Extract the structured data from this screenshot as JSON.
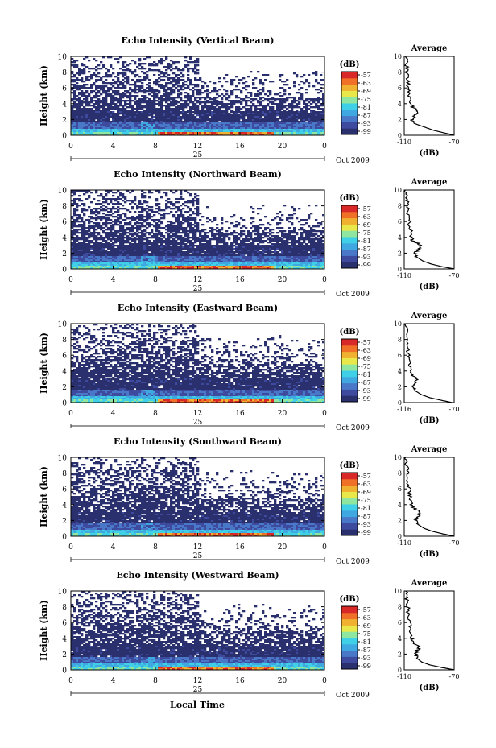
{
  "figure": {
    "xlabel_bottom": "Local Time",
    "date_label": "Oct 2009",
    "day_label": "25",
    "colorbar_unit": "(dB)",
    "colorbar_ticks": [
      "-57",
      "-63",
      "-69",
      "-75",
      "-81",
      "-87",
      "-93",
      "-99"
    ],
    "average_title": "Average",
    "average_unit": "(dB)",
    "ylabel": "Height (km)",
    "colormap": [
      "#2a2f6e",
      "#3e4a9e",
      "#4a78c8",
      "#3fa8e0",
      "#3fd0e8",
      "#8ee6a0",
      "#e8e84a",
      "#f0b030",
      "#f07028",
      "#d82828"
    ]
  },
  "chart_data": [
    {
      "type": "heatmap",
      "title": "Echo Intensity (Vertical Beam)",
      "x": [
        0,
        4,
        8,
        12,
        16,
        20,
        0
      ],
      "x_ticks": [
        "0",
        "4",
        "8",
        "12",
        "16",
        "20",
        "0"
      ],
      "y_ticks": [
        "0",
        "2",
        "4",
        "6",
        "8",
        "10"
      ],
      "ylim": [
        0,
        10
      ],
      "xlim": [
        0,
        24
      ],
      "zlim": [
        -99,
        -57
      ],
      "z_unit": "dB",
      "average_profile": {
        "xlim": [
          -110,
          -70
        ],
        "x_ticks": [
          "-110",
          "-70"
        ],
        "y_ticks": [
          "0",
          "2",
          "4",
          "6",
          "8",
          "10"
        ],
        "height": [
          0,
          0.3,
          0.6,
          1.0,
          1.5,
          2.0,
          2.5,
          3.0,
          3.5,
          4.0,
          5.0,
          6.0,
          7.0,
          8.0,
          9.0,
          10.0
        ],
        "db": [
          -70,
          -78,
          -86,
          -93,
          -102,
          -104,
          -101,
          -98,
          -103,
          -104,
          -106,
          -107,
          -107,
          -108,
          -108,
          -109
        ]
      }
    },
    {
      "type": "heatmap",
      "title": "Echo Intensity (Northward Beam)",
      "x": [
        0,
        4,
        8,
        12,
        16,
        20,
        0
      ],
      "x_ticks": [
        "0",
        "4",
        "8",
        "12",
        "16",
        "20",
        "0"
      ],
      "y_ticks": [
        "0",
        "2",
        "4",
        "6",
        "8",
        "10"
      ],
      "ylim": [
        0,
        10
      ],
      "xlim": [
        0,
        24
      ],
      "zlim": [
        -99,
        -57
      ],
      "z_unit": "dB",
      "average_profile": {
        "xlim": [
          -110,
          -70
        ],
        "x_ticks": [
          "-110",
          "-70"
        ],
        "y_ticks": [
          "0",
          "2",
          "4",
          "6",
          "8",
          "10"
        ],
        "height": [
          0,
          0.3,
          0.6,
          1.0,
          1.5,
          2.0,
          2.5,
          3.0,
          3.5,
          4.0,
          5.0,
          6.0,
          7.0,
          8.0,
          9.0,
          10.0
        ],
        "db": [
          -70,
          -80,
          -88,
          -95,
          -100,
          -102,
          -98,
          -96,
          -103,
          -104,
          -105,
          -106,
          -107,
          -107,
          -108,
          -109
        ]
      }
    },
    {
      "type": "heatmap",
      "title": "Echo Intensity (Eastward Beam)",
      "x": [
        0,
        4,
        8,
        12,
        16,
        20,
        0
      ],
      "x_ticks": [
        "0",
        "4",
        "8",
        "12",
        "16",
        "20",
        "0"
      ],
      "y_ticks": [
        "0",
        "2",
        "4",
        "6",
        "8",
        "10"
      ],
      "ylim": [
        0,
        10
      ],
      "xlim": [
        0,
        24
      ],
      "zlim": [
        -99,
        -57
      ],
      "z_unit": "dB",
      "average_profile": {
        "xlim": [
          -116,
          -70
        ],
        "x_ticks": [
          "-116",
          "-70"
        ],
        "y_ticks": [
          "0",
          "2",
          "4",
          "6",
          "8",
          "10"
        ],
        "height": [
          0,
          0.3,
          0.6,
          1.0,
          1.5,
          2.0,
          2.5,
          3.0,
          3.5,
          4.0,
          5.0,
          6.0,
          7.0,
          8.0,
          9.0,
          10.0
        ],
        "db": [
          -72,
          -82,
          -92,
          -100,
          -106,
          -108,
          -106,
          -104,
          -109,
          -110,
          -111,
          -112,
          -113,
          -113,
          -114,
          -115
        ]
      }
    },
    {
      "type": "heatmap",
      "title": "Echo Intensity (Southward Beam)",
      "x": [
        0,
        4,
        8,
        12,
        16,
        20,
        0
      ],
      "x_ticks": [
        "0",
        "4",
        "8",
        "12",
        "16",
        "20",
        "0"
      ],
      "y_ticks": [
        "0",
        "2",
        "4",
        "6",
        "8",
        "10"
      ],
      "ylim": [
        0,
        10
      ],
      "xlim": [
        0,
        24
      ],
      "zlim": [
        -99,
        -57
      ],
      "z_unit": "dB",
      "average_profile": {
        "xlim": [
          -110,
          -70
        ],
        "x_ticks": [
          "-110",
          "-70"
        ],
        "y_ticks": [
          "0",
          "2",
          "4",
          "6",
          "8",
          "10"
        ],
        "height": [
          0,
          0.3,
          0.6,
          1.0,
          1.5,
          2.0,
          2.5,
          3.0,
          3.5,
          4.0,
          5.0,
          6.0,
          7.0,
          8.0,
          9.0,
          10.0
        ],
        "db": [
          -70,
          -79,
          -87,
          -94,
          -99,
          -101,
          -98,
          -97,
          -102,
          -104,
          -105,
          -106,
          -107,
          -107,
          -108,
          -109
        ]
      }
    },
    {
      "type": "heatmap",
      "title": "Echo Intensity (Westward Beam)",
      "x": [
        0,
        4,
        8,
        12,
        16,
        20,
        0
      ],
      "x_ticks": [
        "0",
        "4",
        "8",
        "12",
        "16",
        "20",
        "0"
      ],
      "y_ticks": [
        "0",
        "2",
        "4",
        "6",
        "8",
        "10"
      ],
      "ylim": [
        0,
        10
      ],
      "xlim": [
        0,
        24
      ],
      "zlim": [
        -99,
        -57
      ],
      "z_unit": "dB",
      "average_profile": {
        "xlim": [
          -110,
          -70
        ],
        "x_ticks": [
          "-110",
          "-70"
        ],
        "y_ticks": [
          "0",
          "2",
          "4",
          "6",
          "8",
          "10"
        ],
        "height": [
          0,
          0.3,
          0.6,
          1.0,
          1.5,
          2.0,
          2.5,
          3.0,
          3.5,
          4.0,
          5.0,
          6.0,
          7.0,
          8.0,
          9.0,
          10.0
        ],
        "db": [
          -70,
          -80,
          -89,
          -96,
          -100,
          -101,
          -99,
          -98,
          -103,
          -104,
          -105,
          -106,
          -107,
          -107,
          -108,
          -109
        ]
      }
    }
  ]
}
